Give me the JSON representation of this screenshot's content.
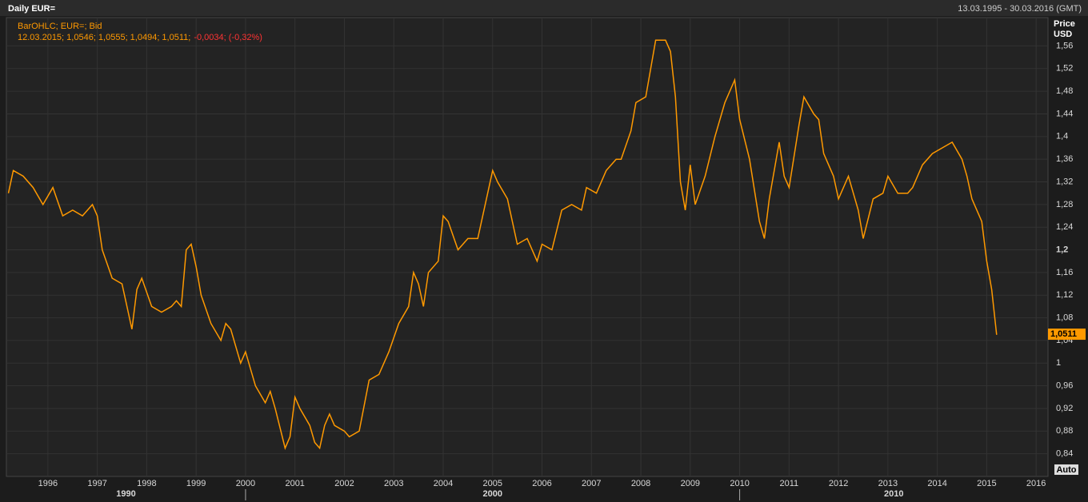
{
  "header": {
    "title": "Daily EUR=",
    "range": "13.03.1995 - 30.03.2016 (GMT)"
  },
  "chart_data": {
    "type": "line",
    "legend": "BarOHLC; EUR=; Bid",
    "info": "12.03.2015; 1,0546; 1,0555; 1,0494; 1,0511;",
    "change": "-0,0034; (-0,32%)",
    "y_title": "Price",
    "y_unit": "USD",
    "last_price": {
      "value": 1.0511,
      "label": "1,0511"
    },
    "scale_button": "Auto",
    "grid": true,
    "xlim": [
      1995.16,
      2016.24
    ],
    "xticks": [
      1996,
      1997,
      1998,
      1999,
      2000,
      2001,
      2002,
      2003,
      2004,
      2005,
      2006,
      2007,
      2008,
      2009,
      2010,
      2011,
      2012,
      2013,
      2014,
      2015,
      2016
    ],
    "x_groups": [
      "1990",
      "2000",
      "2010"
    ],
    "x_group_ticks": [
      2000,
      2010
    ],
    "ylim": [
      0.8,
      1.61
    ],
    "yticks": [
      {
        "value": 0.84,
        "label": "0,84"
      },
      {
        "value": 0.88,
        "label": "0,88"
      },
      {
        "value": 0.92,
        "label": "0,92"
      },
      {
        "value": 0.96,
        "label": "0,96"
      },
      1,
      {
        "value": 1.04,
        "label": "1,04"
      },
      {
        "value": 1.08,
        "label": "1,08"
      },
      {
        "value": 1.12,
        "label": "1,12"
      },
      {
        "value": 1.16,
        "label": "1,16"
      },
      {
        "value": 1.2,
        "label": "1,2"
      },
      {
        "value": 1.24,
        "label": "1,24"
      },
      {
        "value": 1.28,
        "label": "1,28"
      },
      {
        "value": 1.32,
        "label": "1,32"
      },
      {
        "value": 1.36,
        "label": "1,36"
      },
      {
        "value": 1.4,
        "label": "1,4"
      },
      {
        "value": 1.44,
        "label": "1,44"
      },
      {
        "value": 1.48,
        "label": "1,48"
      },
      {
        "value": 1.52,
        "label": "1,52"
      },
      {
        "value": 1.56,
        "label": "1,56"
      }
    ],
    "series": [
      {
        "name": "EUR=",
        "color": "#ff9900",
        "x": [
          1995.2,
          1995.3,
          1995.5,
          1995.7,
          1995.9,
          1996.1,
          1996.3,
          1996.5,
          1996.7,
          1996.9,
          1997.0,
          1997.1,
          1997.3,
          1997.5,
          1997.6,
          1997.7,
          1997.8,
          1997.9,
          1998.1,
          1998.3,
          1998.5,
          1998.6,
          1998.7,
          1998.8,
          1998.9,
          1999.0,
          1999.1,
          1999.3,
          1999.5,
          1999.6,
          1999.7,
          1999.9,
          2000.0,
          2000.2,
          2000.4,
          2000.5,
          2000.6,
          2000.8,
          2000.9,
          2001.0,
          2001.1,
          2001.3,
          2001.4,
          2001.5,
          2001.6,
          2001.7,
          2001.8,
          2002.0,
          2002.1,
          2002.3,
          2002.5,
          2002.7,
          2002.9,
          2003.1,
          2003.3,
          2003.4,
          2003.5,
          2003.6,
          2003.7,
          2003.9,
          2004.0,
          2004.1,
          2004.3,
          2004.5,
          2004.7,
          2004.9,
          2005.0,
          2005.1,
          2005.3,
          2005.5,
          2005.7,
          2005.9,
          2006.0,
          2006.2,
          2006.4,
          2006.6,
          2006.8,
          2006.9,
          2007.1,
          2007.3,
          2007.5,
          2007.6,
          2007.8,
          2007.9,
          2008.1,
          2008.3,
          2008.5,
          2008.6,
          2008.7,
          2008.8,
          2008.9,
          2009.0,
          2009.1,
          2009.3,
          2009.5,
          2009.7,
          2009.9,
          2010.0,
          2010.2,
          2010.4,
          2010.5,
          2010.6,
          2010.8,
          2010.9,
          2011.0,
          2011.2,
          2011.3,
          2011.5,
          2011.6,
          2011.7,
          2011.9,
          2012.0,
          2012.2,
          2012.4,
          2012.5,
          2012.7,
          2012.9,
          2013.0,
          2013.2,
          2013.4,
          2013.5,
          2013.7,
          2013.9,
          2014.1,
          2014.3,
          2014.5,
          2014.6,
          2014.7,
          2014.9,
          2015.0,
          2015.1,
          2015.2
        ],
        "values": [
          1.3,
          1.34,
          1.33,
          1.31,
          1.28,
          1.31,
          1.26,
          1.27,
          1.26,
          1.28,
          1.26,
          1.2,
          1.15,
          1.14,
          1.1,
          1.06,
          1.13,
          1.15,
          1.1,
          1.09,
          1.1,
          1.11,
          1.1,
          1.2,
          1.21,
          1.17,
          1.12,
          1.07,
          1.04,
          1.07,
          1.06,
          1.0,
          1.02,
          0.96,
          0.93,
          0.95,
          0.92,
          0.85,
          0.87,
          0.94,
          0.92,
          0.89,
          0.86,
          0.85,
          0.89,
          0.91,
          0.89,
          0.88,
          0.87,
          0.88,
          0.97,
          0.98,
          1.02,
          1.07,
          1.1,
          1.16,
          1.14,
          1.1,
          1.16,
          1.18,
          1.26,
          1.25,
          1.2,
          1.22,
          1.22,
          1.3,
          1.34,
          1.32,
          1.29,
          1.21,
          1.22,
          1.18,
          1.21,
          1.2,
          1.27,
          1.28,
          1.27,
          1.31,
          1.3,
          1.34,
          1.36,
          1.36,
          1.41,
          1.46,
          1.47,
          1.57,
          1.57,
          1.55,
          1.47,
          1.32,
          1.27,
          1.35,
          1.28,
          1.33,
          1.4,
          1.46,
          1.5,
          1.43,
          1.36,
          1.25,
          1.22,
          1.29,
          1.39,
          1.33,
          1.31,
          1.42,
          1.47,
          1.44,
          1.43,
          1.37,
          1.33,
          1.29,
          1.33,
          1.27,
          1.22,
          1.29,
          1.3,
          1.33,
          1.3,
          1.3,
          1.31,
          1.35,
          1.37,
          1.38,
          1.39,
          1.36,
          1.33,
          1.29,
          1.25,
          1.18,
          1.13,
          1.05
        ]
      }
    ]
  }
}
